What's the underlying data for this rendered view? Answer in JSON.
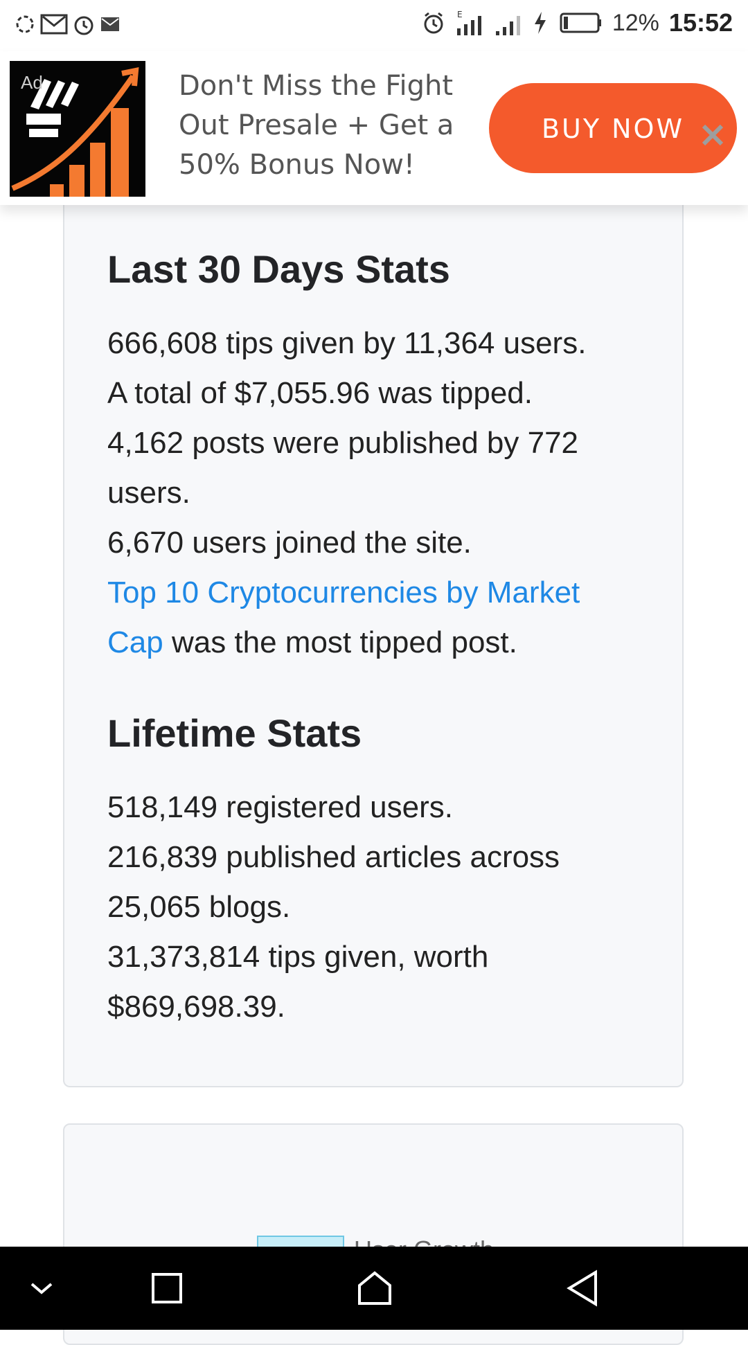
{
  "status_bar": {
    "battery_percent": "12%",
    "time": "15:52",
    "left_icons": [
      "sync-icon",
      "gmail-icon",
      "alarm-icon",
      "mail-icon"
    ],
    "right_icons": [
      "alarm-icon",
      "signal-e-icon",
      "signal-icon",
      "charging-icon",
      "battery-icon"
    ]
  },
  "ad": {
    "label": "Ad",
    "text": "Don't Miss the Fight Out Presale + Get a 50% Bonus Now!",
    "cta": "BUY NOW",
    "close_icon": "close-icon",
    "cta_color": "#f45a2c"
  },
  "last30": {
    "title": "Last 30 Days Stats",
    "line1": "666,608 tips given by 11,364 users.",
    "line2": "A total of $7,055.96 was tipped.",
    "line3": "4,162 posts were published by 772 users.",
    "line4": "6,670 users joined the site.",
    "link_text": "Top 10 Cryptocurrencies by Market Cap",
    "link_suffix": " was the most tipped post."
  },
  "lifetime": {
    "title": "Lifetime Stats",
    "line1": "518,149 registered users.",
    "line2": "216,839 published articles across 25,065 blogs.",
    "line3": "31,373,814 tips given, worth $869,698.39."
  },
  "chart_card": {
    "legend_label": "User Growth"
  },
  "nav_bar": {
    "buttons": [
      "collapse-icon",
      "recents-icon",
      "home-icon",
      "back-icon"
    ]
  },
  "colors": {
    "link": "#1e88e5",
    "card_background": "#f7f8fa"
  }
}
